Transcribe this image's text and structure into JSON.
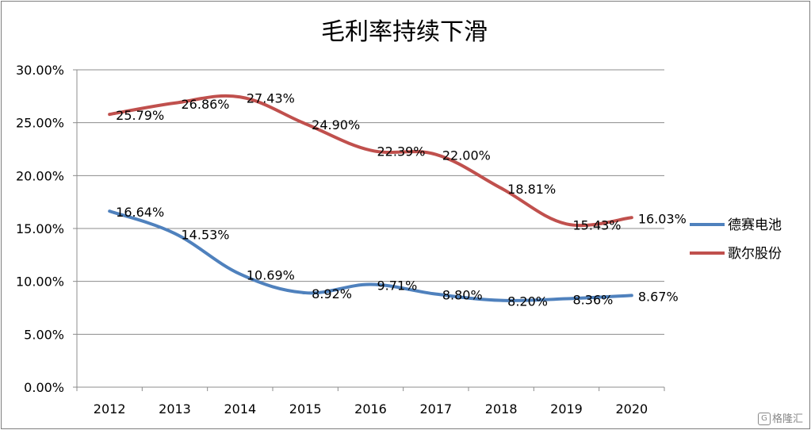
{
  "chart_data": {
    "type": "line",
    "title": "毛利率持续下滑",
    "xlabel": "",
    "ylabel": "",
    "categories": [
      "2012",
      "2013",
      "2014",
      "2015",
      "2016",
      "2017",
      "2018",
      "2019",
      "2020"
    ],
    "ylim": [
      0,
      30
    ],
    "yticks": [
      "0.00%",
      "5.00%",
      "10.00%",
      "15.00%",
      "20.00%",
      "25.00%",
      "30.00%"
    ],
    "grid": true,
    "legend_position": "right",
    "series": [
      {
        "name": "德赛电池",
        "color": "#4f81bd",
        "values": [
          16.64,
          14.53,
          10.69,
          8.92,
          9.71,
          8.8,
          8.2,
          8.36,
          8.67
        ],
        "labels": [
          "16.64%",
          "14.53%",
          "10.69%",
          "8.92%",
          "9.71%",
          "8.80%",
          "8.20%",
          "8.36%",
          "8.67%"
        ]
      },
      {
        "name": "歌尔股份",
        "color": "#c0504d",
        "values": [
          25.79,
          26.86,
          27.43,
          24.9,
          22.39,
          22.0,
          18.81,
          15.43,
          16.03
        ],
        "labels": [
          "25.79%",
          "26.86%",
          "27.43%",
          "24.90%",
          "22.39%",
          "22.00%",
          "18.81%",
          "15.43%",
          "16.03%"
        ]
      }
    ]
  },
  "watermark": {
    "icon": "G",
    "text": "格隆汇"
  }
}
